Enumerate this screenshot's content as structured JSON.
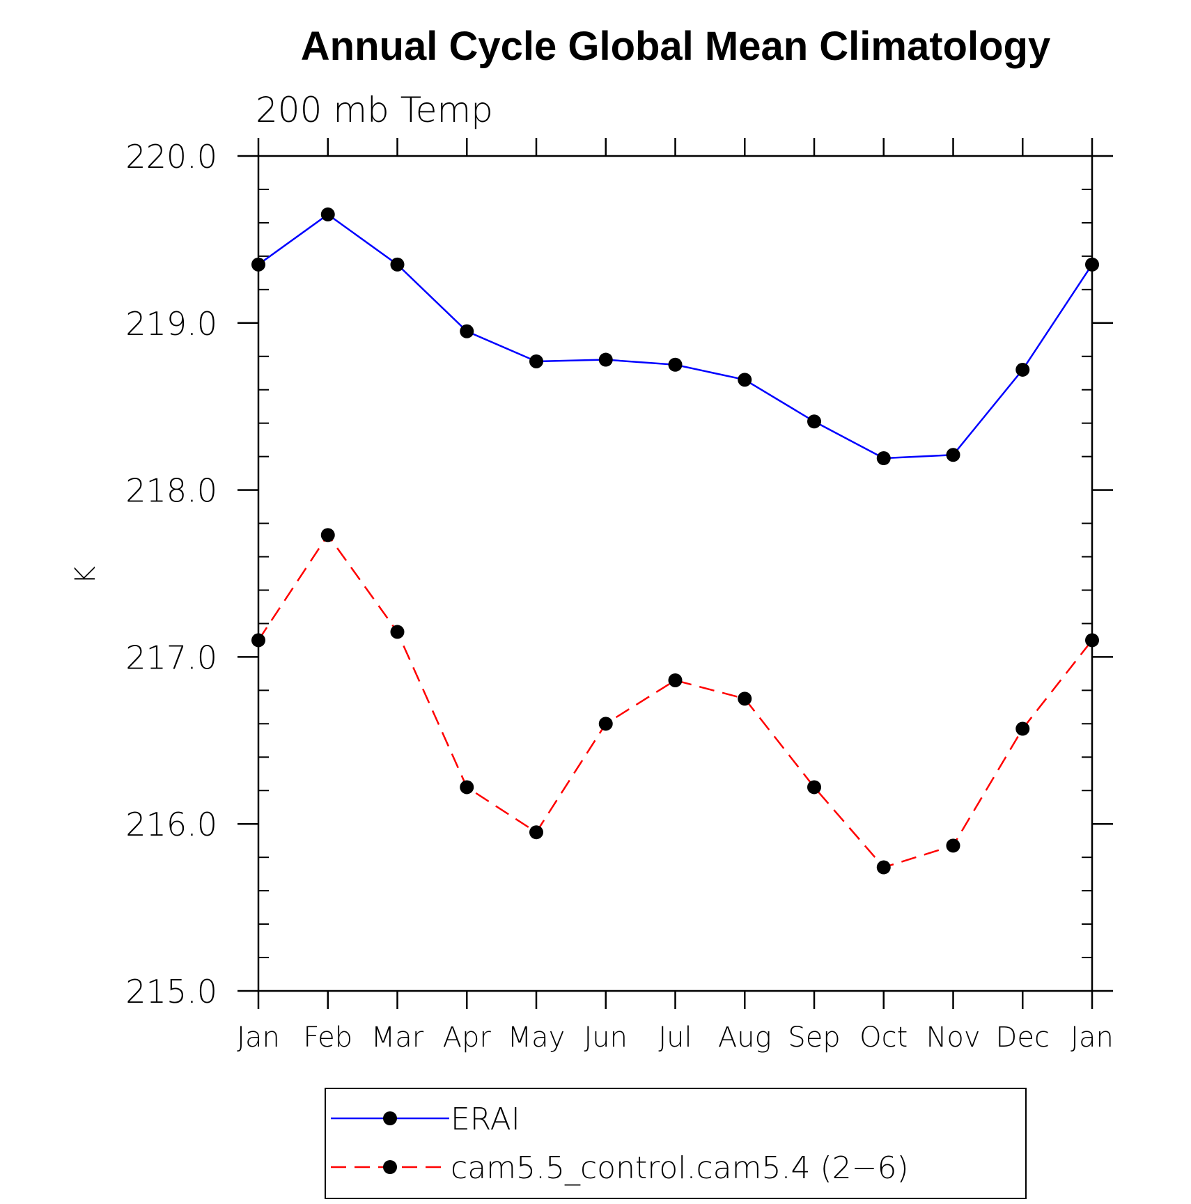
{
  "chart_data": {
    "type": "line",
    "title": "Annual Cycle Global Mean Climatology",
    "subtitle": "200 mb Temp",
    "ylabel": "K",
    "xlabel": "",
    "ylim": [
      215.0,
      220.0
    ],
    "yticks": [
      "215.0",
      "216.0",
      "217.0",
      "218.0",
      "219.0",
      "220.0"
    ],
    "categories": [
      "Jan",
      "Feb",
      "Mar",
      "Apr",
      "May",
      "Jun",
      "Jul",
      "Aug",
      "Sep",
      "Oct",
      "Nov",
      "Dec",
      "Jan"
    ],
    "series": [
      {
        "name": "ERAI",
        "color": "#0000ff",
        "dash": "solid",
        "values": [
          219.35,
          219.65,
          219.35,
          218.95,
          218.77,
          218.78,
          218.75,
          218.66,
          218.41,
          218.19,
          218.21,
          218.72,
          219.35
        ]
      },
      {
        "name": "cam5.5_control.cam5.4 (2−6)",
        "color": "#ff0000",
        "dash": "dashed",
        "values": [
          217.1,
          217.73,
          217.15,
          216.22,
          215.95,
          216.6,
          216.86,
          216.75,
          216.22,
          215.74,
          215.87,
          216.57,
          217.1
        ]
      }
    ],
    "grid": false,
    "legend_position": "bottom"
  }
}
